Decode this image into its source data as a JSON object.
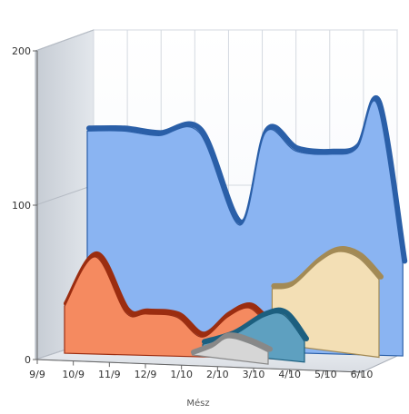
{
  "chart_data": {
    "type": "area",
    "style": "3d",
    "title": "",
    "xlabel": "Mész",
    "ylabel": "",
    "ylim": [
      0,
      200
    ],
    "y_ticks": [
      0,
      100,
      200
    ],
    "categories": [
      "9/9",
      "10/9",
      "11/9",
      "12/9",
      "1/10",
      "2/10",
      "3/10",
      "4/10",
      "5/10",
      "6/10"
    ],
    "grid": true,
    "legend": "none",
    "series": [
      {
        "color": "#8ab4f2",
        "edge": "#2a5fa8",
        "points": [
          [
            0,
            141
          ],
          [
            0.7,
            141
          ],
          [
            1.4,
            138
          ],
          [
            2.2,
            140
          ],
          [
            3.0,
            80
          ],
          [
            3.5,
            140
          ],
          [
            4.1,
            128
          ],
          [
            4.8,
            126
          ],
          [
            5.3,
            130
          ],
          [
            5.7,
            158
          ],
          [
            6.2,
            55
          ]
        ]
      },
      {
        "color": "#f3dfb5",
        "edge": "#a38a55",
        "points": [
          [
            3.9,
            40
          ],
          [
            4.3,
            42
          ],
          [
            4.8,
            57
          ],
          [
            5.2,
            64
          ],
          [
            5.6,
            60
          ],
          [
            6.0,
            46
          ]
        ]
      },
      {
        "color": "#f58a60",
        "edge": "#9b2d10",
        "points": [
          [
            0,
            31
          ],
          [
            0.6,
            63
          ],
          [
            1.2,
            27
          ],
          [
            1.6,
            26
          ],
          [
            2.2,
            24
          ],
          [
            2.7,
            11
          ],
          [
            3.2,
            24
          ],
          [
            3.6,
            30
          ],
          [
            3.9,
            23
          ],
          [
            4.2,
            18
          ]
        ]
      },
      {
        "color": "#5ea0c0",
        "edge": "#1c5f7f",
        "points": [
          [
            3.0,
            8
          ],
          [
            3.6,
            14
          ],
          [
            4.2,
            26
          ],
          [
            4.6,
            27
          ],
          [
            5.0,
            10
          ]
        ]
      },
      {
        "color": "#d6d6d6",
        "edge": "#888888",
        "points": [
          [
            3.0,
            3
          ],
          [
            3.4,
            8
          ],
          [
            3.7,
            14
          ],
          [
            4.1,
            11
          ],
          [
            4.5,
            5
          ]
        ]
      }
    ]
  }
}
